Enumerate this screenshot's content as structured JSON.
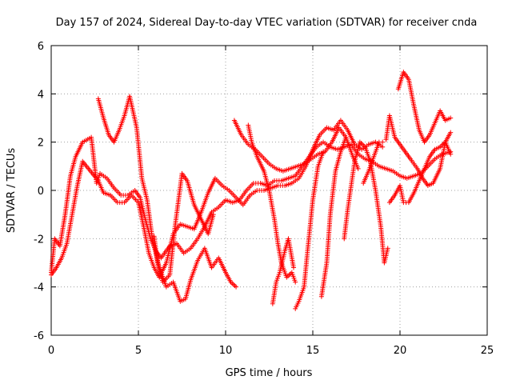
{
  "chart_data": {
    "type": "scatter",
    "title": "Day 157 of 2024, Sidereal Day-to-day VTEC variation (SDTVAR) for receiver cnda",
    "xlabel": "GPS time / hours",
    "ylabel": "SDTVAR / TECUs",
    "xlim": [
      0,
      25
    ],
    "ylim": [
      -6,
      6
    ],
    "xticks": [
      0,
      5,
      10,
      15,
      20,
      25
    ],
    "yticks": [
      -6,
      -4,
      -2,
      0,
      2,
      4,
      6
    ],
    "grid": true,
    "marker": "+",
    "marker_color": "#ff0000",
    "series": [
      {
        "values": [
          [
            0.0,
            -3.4
          ],
          [
            0.2,
            -2.0
          ],
          [
            0.5,
            -2.3
          ],
          [
            0.8,
            -1.0
          ],
          [
            1.1,
            0.6
          ],
          [
            1.4,
            1.4
          ],
          [
            1.8,
            2.0
          ],
          [
            2.3,
            2.2
          ],
          [
            2.6,
            0.3
          ],
          [
            2.8,
            0.7
          ],
          [
            3.2,
            0.5
          ],
          [
            3.6,
            0.1
          ],
          [
            4.0,
            -0.2
          ],
          [
            4.4,
            -0.2
          ],
          [
            4.8,
            0.0
          ],
          [
            5.1,
            -0.3
          ],
          [
            5.4,
            -1.2
          ],
          [
            5.7,
            -2.0
          ],
          [
            6.0,
            -2.5
          ],
          [
            6.3,
            -2.8
          ],
          [
            6.8,
            -2.3
          ],
          [
            7.2,
            -2.2
          ],
          [
            7.6,
            -2.6
          ],
          [
            8.0,
            -2.4
          ],
          [
            8.4,
            -2.0
          ],
          [
            8.8,
            -1.5
          ],
          [
            9.2,
            -0.9
          ],
          [
            9.6,
            -0.7
          ],
          [
            10.0,
            -0.4
          ],
          [
            10.4,
            -0.5
          ],
          [
            10.8,
            -0.4
          ],
          [
            11.2,
            0.0
          ],
          [
            11.6,
            0.3
          ],
          [
            12.0,
            0.3
          ],
          [
            12.4,
            0.2
          ],
          [
            12.8,
            0.4
          ],
          [
            13.2,
            0.4
          ],
          [
            13.6,
            0.5
          ],
          [
            14.0,
            0.6
          ],
          [
            14.4,
            1.0
          ],
          [
            14.8,
            1.4
          ],
          [
            15.2,
            1.8
          ],
          [
            15.6,
            2.0
          ],
          [
            16.0,
            1.8
          ],
          [
            16.4,
            1.7
          ],
          [
            16.8,
            1.8
          ],
          [
            17.2,
            1.9
          ],
          [
            17.6,
            1.5
          ],
          [
            18.0,
            1.3
          ],
          [
            18.4,
            1.2
          ],
          [
            18.8,
            1.0
          ],
          [
            19.2,
            0.9
          ],
          [
            19.6,
            0.8
          ],
          [
            20.0,
            0.6
          ],
          [
            20.4,
            0.5
          ],
          [
            20.8,
            0.6
          ],
          [
            21.2,
            0.7
          ],
          [
            21.6,
            1.0
          ],
          [
            22.0,
            1.3
          ],
          [
            22.4,
            1.5
          ],
          [
            22.9,
            1.6
          ]
        ]
      },
      {
        "values": [
          [
            0.0,
            -3.5
          ],
          [
            0.3,
            -3.2
          ],
          [
            0.6,
            -2.8
          ],
          [
            0.9,
            -2.2
          ],
          [
            1.2,
            -1.0
          ],
          [
            1.5,
            0.2
          ],
          [
            1.8,
            1.2
          ],
          [
            2.7,
            0.4
          ],
          [
            3.0,
            -0.1
          ],
          [
            3.4,
            -0.2
          ],
          [
            3.8,
            -0.5
          ],
          [
            4.2,
            -0.5
          ],
          [
            4.6,
            -0.2
          ],
          [
            5.0,
            -0.5
          ],
          [
            5.3,
            -1.5
          ],
          [
            5.6,
            -2.6
          ],
          [
            5.9,
            -3.2
          ],
          [
            6.2,
            -3.6
          ],
          [
            6.6,
            -3.0
          ],
          [
            7.0,
            -1.8
          ],
          [
            7.4,
            -1.4
          ],
          [
            7.8,
            -1.5
          ],
          [
            8.2,
            -1.6
          ],
          [
            8.6,
            -0.9
          ],
          [
            9.0,
            -0.1
          ],
          [
            9.4,
            0.5
          ],
          [
            9.8,
            0.2
          ],
          [
            10.2,
            0.0
          ],
          [
            10.6,
            -0.3
          ],
          [
            11.0,
            -0.6
          ],
          [
            11.4,
            -0.2
          ],
          [
            11.8,
            0.0
          ],
          [
            12.2,
            0.0
          ],
          [
            12.6,
            0.1
          ],
          [
            13.0,
            0.2
          ],
          [
            13.4,
            0.2
          ],
          [
            13.8,
            0.3
          ],
          [
            14.2,
            0.5
          ],
          [
            14.6,
            1.0
          ],
          [
            15.0,
            1.7
          ],
          [
            15.4,
            2.3
          ],
          [
            15.8,
            2.6
          ],
          [
            16.2,
            2.5
          ],
          [
            16.6,
            2.9
          ],
          [
            17.0,
            2.5
          ],
          [
            17.4,
            1.9
          ],
          [
            17.8,
            1.7
          ],
          [
            18.2,
            1.9
          ],
          [
            18.6,
            2.0
          ],
          [
            19.0,
            1.8
          ]
        ]
      },
      {
        "values": [
          [
            2.7,
            3.8
          ],
          [
            3.0,
            3.0
          ],
          [
            3.3,
            2.3
          ],
          [
            3.6,
            2.0
          ],
          [
            3.9,
            2.5
          ],
          [
            4.2,
            3.1
          ],
          [
            4.5,
            3.9
          ],
          [
            4.9,
            2.6
          ],
          [
            5.2,
            0.5
          ],
          [
            5.5,
            -0.4
          ],
          [
            5.8,
            -2.0
          ],
          [
            6.2,
            -3.2
          ],
          [
            6.6,
            -4.0
          ],
          [
            7.0,
            -3.8
          ],
          [
            7.4,
            -4.6
          ],
          [
            7.7,
            -4.5
          ],
          [
            8.0,
            -3.7
          ],
          [
            8.4,
            -2.9
          ],
          [
            8.8,
            -2.4
          ],
          [
            9.2,
            -3.2
          ],
          [
            9.6,
            -2.8
          ],
          [
            10.0,
            -3.4
          ],
          [
            10.3,
            -3.8
          ],
          [
            10.6,
            -4.0
          ]
        ]
      },
      {
        "values": [
          [
            5.9,
            -1.9
          ],
          [
            6.1,
            -3.0
          ],
          [
            6.4,
            -3.8
          ],
          [
            6.8,
            -3.5
          ],
          [
            7.1,
            -1.5
          ],
          [
            7.5,
            0.7
          ],
          [
            7.8,
            0.4
          ],
          [
            8.2,
            -0.6
          ],
          [
            8.6,
            -1.2
          ],
          [
            9.0,
            -1.8
          ],
          [
            9.3,
            -1.0
          ]
        ]
      },
      {
        "values": [
          [
            10.5,
            2.9
          ],
          [
            10.9,
            2.3
          ],
          [
            11.3,
            1.9
          ],
          [
            11.7,
            1.7
          ],
          [
            12.1,
            1.4
          ],
          [
            12.5,
            1.1
          ],
          [
            12.9,
            0.9
          ],
          [
            13.3,
            0.8
          ],
          [
            13.7,
            0.9
          ],
          [
            14.1,
            1.0
          ],
          [
            14.5,
            1.1
          ],
          [
            14.9,
            1.3
          ],
          [
            15.3,
            1.5
          ],
          [
            15.7,
            1.6
          ],
          [
            16.1,
            2.0
          ],
          [
            16.5,
            2.6
          ],
          [
            16.9,
            2.2
          ],
          [
            17.3,
            1.4
          ],
          [
            17.6,
            0.9
          ]
        ]
      },
      {
        "values": [
          [
            11.3,
            2.7
          ],
          [
            11.5,
            2.0
          ],
          [
            11.8,
            1.4
          ],
          [
            12.2,
            0.8
          ],
          [
            12.5,
            0.0
          ],
          [
            12.8,
            -1.2
          ],
          [
            13.0,
            -2.2
          ],
          [
            13.2,
            -3.0
          ],
          [
            13.5,
            -3.6
          ],
          [
            13.8,
            -3.4
          ],
          [
            14.0,
            -3.8
          ]
        ]
      },
      {
        "values": [
          [
            12.7,
            -4.7
          ],
          [
            12.9,
            -3.8
          ],
          [
            13.1,
            -3.4
          ],
          [
            13.4,
            -2.5
          ],
          [
            13.6,
            -2.0
          ],
          [
            13.9,
            -3.2
          ]
        ]
      },
      {
        "values": [
          [
            14.0,
            -4.9
          ],
          [
            14.2,
            -4.6
          ],
          [
            14.5,
            -4.0
          ],
          [
            14.7,
            -2.5
          ],
          [
            15.0,
            -0.4
          ],
          [
            15.3,
            1.0
          ],
          [
            15.6,
            1.6
          ]
        ]
      },
      {
        "values": [
          [
            15.5,
            -4.4
          ],
          [
            15.8,
            -3.0
          ],
          [
            16.0,
            -1.0
          ],
          [
            16.3,
            0.8
          ],
          [
            16.6,
            1.6
          ],
          [
            16.9,
            2.2
          ]
        ]
      },
      {
        "values": [
          [
            16.8,
            -2.0
          ],
          [
            17.0,
            -0.8
          ],
          [
            17.2,
            0.2
          ],
          [
            17.4,
            1.2
          ],
          [
            17.7,
            2.0
          ],
          [
            18.0,
            1.8
          ],
          [
            18.3,
            1.2
          ],
          [
            18.6,
            0.0
          ],
          [
            18.9,
            -1.5
          ],
          [
            19.1,
            -3.0
          ],
          [
            19.3,
            -2.4
          ]
        ]
      },
      {
        "values": [
          [
            17.9,
            0.3
          ],
          [
            18.2,
            0.8
          ],
          [
            18.5,
            1.4
          ],
          [
            18.8,
            2.0
          ],
          [
            19.0,
            2.0
          ]
        ]
      },
      {
        "values": [
          [
            19.2,
            2.1
          ],
          [
            19.4,
            3.1
          ],
          [
            19.7,
            2.2
          ],
          [
            20.0,
            1.9
          ],
          [
            20.3,
            1.6
          ],
          [
            20.6,
            1.3
          ],
          [
            21.0,
            0.9
          ],
          [
            21.3,
            0.5
          ],
          [
            21.6,
            0.2
          ],
          [
            21.9,
            0.3
          ],
          [
            22.3,
            0.9
          ],
          [
            22.6,
            2.0
          ],
          [
            22.9,
            2.4
          ]
        ]
      },
      {
        "values": [
          [
            19.9,
            4.2
          ],
          [
            20.2,
            4.9
          ],
          [
            20.5,
            4.6
          ],
          [
            20.8,
            3.5
          ],
          [
            21.1,
            2.5
          ],
          [
            21.4,
            2.0
          ],
          [
            21.7,
            2.3
          ],
          [
            22.0,
            2.8
          ],
          [
            22.3,
            3.3
          ],
          [
            22.6,
            2.9
          ],
          [
            22.9,
            3.0
          ]
        ]
      },
      {
        "values": [
          [
            19.4,
            -0.5
          ],
          [
            19.7,
            -0.2
          ],
          [
            20.0,
            0.2
          ],
          [
            20.2,
            -0.5
          ],
          [
            20.5,
            -0.5
          ],
          [
            20.8,
            -0.1
          ],
          [
            21.1,
            0.4
          ],
          [
            21.4,
            0.9
          ],
          [
            21.7,
            1.4
          ],
          [
            22.0,
            1.7
          ],
          [
            22.3,
            1.8
          ],
          [
            22.6,
            2.0
          ],
          [
            22.9,
            1.5
          ]
        ]
      }
    ]
  }
}
